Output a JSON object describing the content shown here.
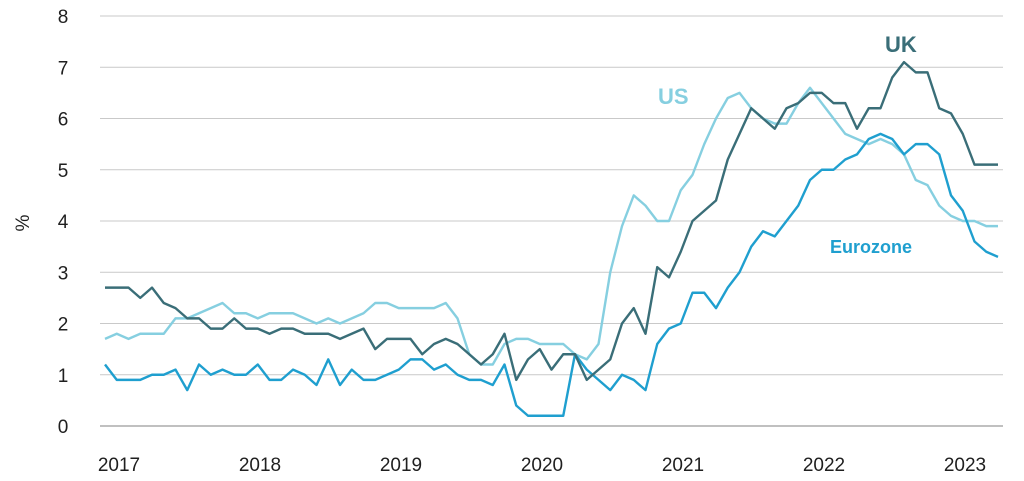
{
  "chart_data": {
    "type": "line",
    "ylabel": "%",
    "ylim": [
      0,
      8
    ],
    "yticks": [
      0,
      1,
      2,
      3,
      4,
      5,
      6,
      7,
      8
    ],
    "xticks": [
      "2017",
      "2018",
      "2019",
      "2020",
      "2021",
      "2022",
      "2023"
    ],
    "grid": "horizontal",
    "x_start": "2017-01",
    "series": [
      {
        "name": "UK",
        "color": "#3a6e78",
        "values": [
          2.7,
          2.7,
          2.7,
          2.5,
          2.7,
          2.4,
          2.3,
          2.1,
          2.1,
          1.9,
          1.9,
          2.1,
          1.9,
          1.9,
          1.8,
          1.9,
          1.9,
          1.8,
          1.8,
          1.8,
          1.7,
          1.8,
          1.9,
          1.5,
          1.7,
          1.7,
          1.7,
          1.4,
          1.6,
          1.7,
          1.6,
          1.4,
          1.2,
          1.4,
          1.8,
          0.9,
          1.3,
          1.5,
          1.1,
          1.4,
          1.4,
          0.9,
          1.1,
          1.3,
          2.0,
          2.3,
          1.8,
          3.1,
          2.9,
          3.4,
          4.0,
          4.2,
          4.4,
          5.2,
          5.7,
          6.2,
          6.0,
          5.8,
          6.2,
          6.3,
          6.5,
          6.5,
          6.3,
          6.3,
          5.8,
          6.2,
          6.2,
          6.8,
          7.1,
          6.9,
          6.9,
          6.2,
          6.1,
          5.7,
          5.1,
          5.1,
          5.1
        ]
      },
      {
        "name": "US",
        "color": "#86cfe0",
        "values": [
          1.7,
          1.8,
          1.7,
          1.8,
          1.8,
          1.8,
          2.1,
          2.1,
          2.2,
          2.3,
          2.4,
          2.2,
          2.2,
          2.1,
          2.2,
          2.2,
          2.2,
          2.1,
          2.0,
          2.1,
          2.0,
          2.1,
          2.2,
          2.4,
          2.4,
          2.3,
          2.3,
          2.3,
          2.3,
          2.4,
          2.1,
          1.4,
          1.2,
          1.2,
          1.6,
          1.7,
          1.7,
          1.6,
          1.6,
          1.6,
          1.4,
          1.3,
          1.6,
          3.0,
          3.9,
          4.5,
          4.3,
          4.0,
          4.0,
          4.6,
          4.9,
          5.5,
          6.0,
          6.4,
          6.5,
          6.2,
          6.0,
          5.9,
          5.9,
          6.3,
          6.6,
          6.3,
          6.0,
          5.7,
          5.6,
          5.5,
          5.6,
          5.5,
          5.3,
          4.8,
          4.7,
          4.3,
          4.1,
          4.0,
          4.0,
          3.9,
          3.9
        ]
      },
      {
        "name": "Eurozone",
        "color": "#1f9fcf",
        "values": [
          1.2,
          0.9,
          0.9,
          0.9,
          1.0,
          1.0,
          1.1,
          0.7,
          1.2,
          1.0,
          1.1,
          1.0,
          1.0,
          1.2,
          0.9,
          0.9,
          1.1,
          1.0,
          0.8,
          1.3,
          0.8,
          1.1,
          0.9,
          0.9,
          1.0,
          1.1,
          1.3,
          1.3,
          1.1,
          1.2,
          1.0,
          0.9,
          0.9,
          0.8,
          1.2,
          0.4,
          0.2,
          0.2,
          0.2,
          0.2,
          1.4,
          1.1,
          0.9,
          0.7,
          1.0,
          0.9,
          0.7,
          1.6,
          1.9,
          2.0,
          2.6,
          2.6,
          2.3,
          2.7,
          3.0,
          3.5,
          3.8,
          3.7,
          4.0,
          4.3,
          4.8,
          5.0,
          5.0,
          5.2,
          5.3,
          5.6,
          5.7,
          5.6,
          5.3,
          5.5,
          5.5,
          5.3,
          4.5,
          4.2,
          3.6,
          3.4,
          3.3
        ]
      }
    ]
  }
}
